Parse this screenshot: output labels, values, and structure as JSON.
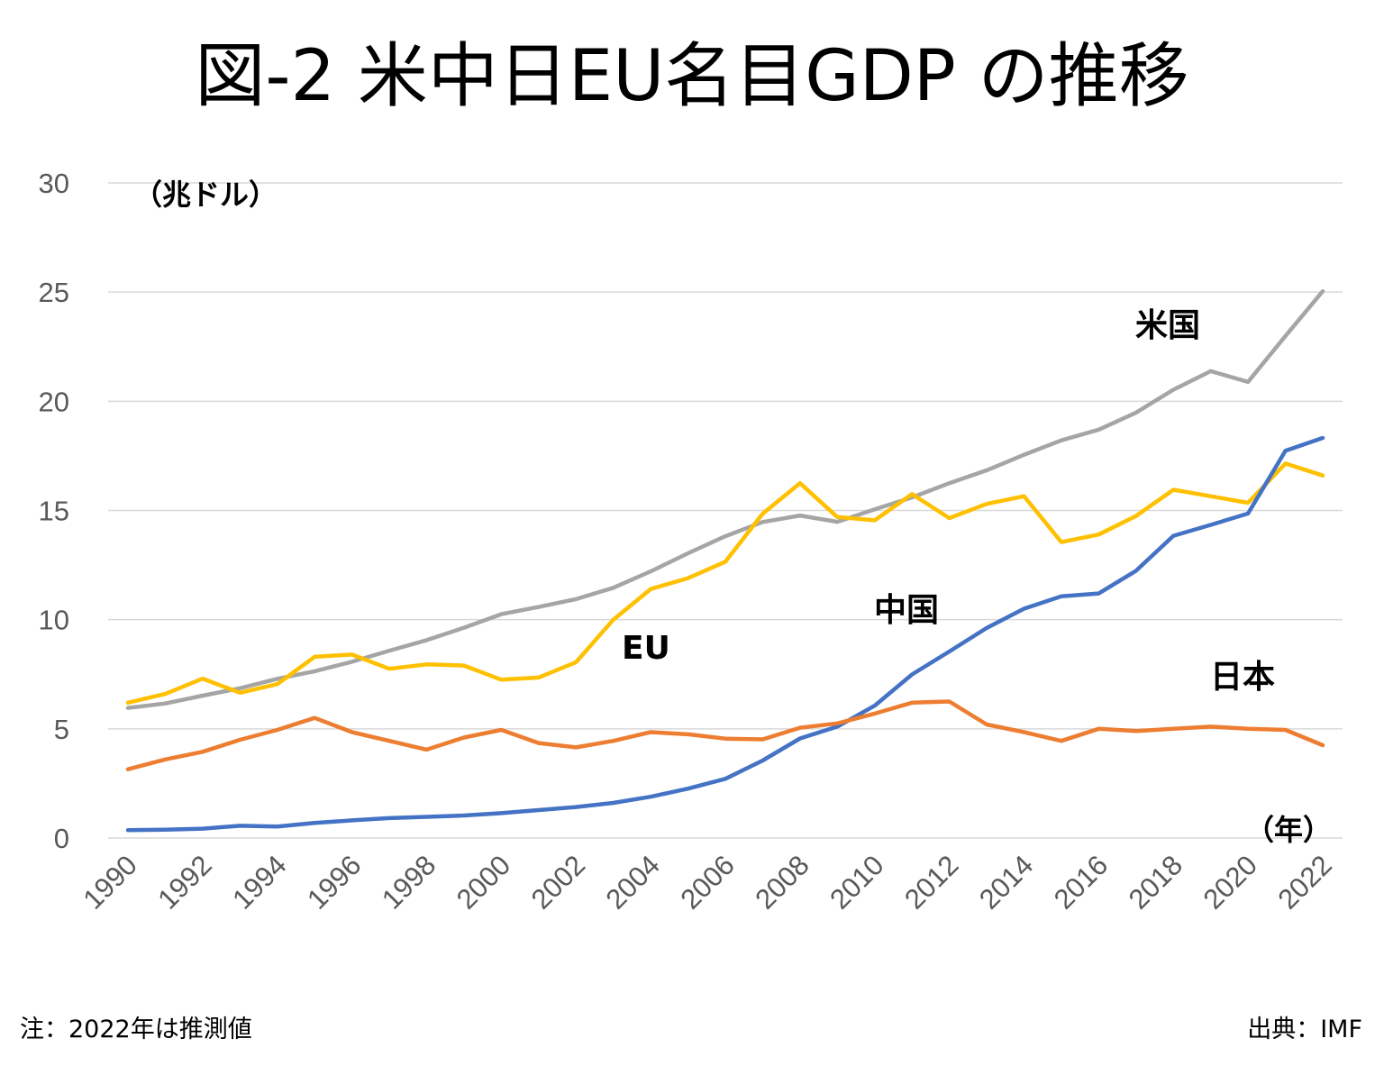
{
  "chart_data": {
    "type": "line",
    "title": "図-2 米中日EU名目GDP の推移",
    "ylabel": "（兆ドル）",
    "xlabel": "（年）",
    "ylim": [
      0,
      30
    ],
    "yticks": [
      0,
      5,
      10,
      15,
      20,
      25,
      30
    ],
    "grid": true,
    "legend": "none",
    "x": [
      1990,
      1991,
      1992,
      1993,
      1994,
      1995,
      1996,
      1997,
      1998,
      1999,
      2000,
      2001,
      2002,
      2003,
      2004,
      2005,
      2006,
      2007,
      2008,
      2009,
      2010,
      2011,
      2012,
      2013,
      2014,
      2015,
      2016,
      2017,
      2018,
      2019,
      2020,
      2021,
      2022
    ],
    "xtick_labels": [
      "1990",
      "1992",
      "1994",
      "1996",
      "1998",
      "2000",
      "2002",
      "2004",
      "2006",
      "2008",
      "2010",
      "2012",
      "2014",
      "2016",
      "2018",
      "2020",
      "2022"
    ],
    "series": [
      {
        "name": "米国",
        "color": "#A5A5A5",
        "values": [
          5.96,
          6.16,
          6.52,
          6.86,
          7.29,
          7.64,
          8.07,
          8.58,
          9.06,
          9.63,
          10.25,
          10.58,
          10.94,
          11.46,
          12.21,
          13.04,
          13.82,
          14.47,
          14.77,
          14.48,
          15.05,
          15.6,
          16.25,
          16.84,
          17.55,
          18.21,
          18.7,
          19.48,
          20.53,
          21.38,
          20.89,
          22.99,
          25.04
        ]
      },
      {
        "name": "EU",
        "color": "#FFC000",
        "values": [
          6.2,
          6.6,
          7.3,
          6.65,
          7.05,
          8.3,
          8.4,
          7.75,
          7.95,
          7.9,
          7.25,
          7.35,
          8.05,
          10.0,
          11.4,
          11.9,
          12.65,
          14.85,
          16.25,
          14.7,
          14.55,
          15.75,
          14.65,
          15.3,
          15.65,
          13.55,
          13.9,
          14.75,
          15.95,
          15.65,
          15.35,
          17.15,
          16.6
        ]
      },
      {
        "name": "中国",
        "color": "#4472C4",
        "values": [
          0.36,
          0.38,
          0.43,
          0.56,
          0.53,
          0.69,
          0.81,
          0.91,
          0.97,
          1.03,
          1.14,
          1.28,
          1.42,
          1.61,
          1.89,
          2.26,
          2.71,
          3.55,
          4.56,
          5.1,
          6.06,
          7.49,
          8.54,
          9.62,
          10.5,
          11.07,
          11.2,
          12.24,
          13.84,
          14.34,
          14.86,
          17.73,
          18.32
        ]
      },
      {
        "name": "日本",
        "color": "#ED7D31",
        "values": [
          3.15,
          3.6,
          3.95,
          4.5,
          4.95,
          5.5,
          4.85,
          4.45,
          4.05,
          4.6,
          4.95,
          4.35,
          4.15,
          4.45,
          4.85,
          4.75,
          4.55,
          4.52,
          5.05,
          5.25,
          5.7,
          6.2,
          6.25,
          5.2,
          4.85,
          4.45,
          5.0,
          4.9,
          5.0,
          5.1,
          5.0,
          4.95,
          4.25
        ]
      }
    ]
  },
  "footer": {
    "note": "注：2022年は推測値",
    "source": "出典：IMF"
  }
}
